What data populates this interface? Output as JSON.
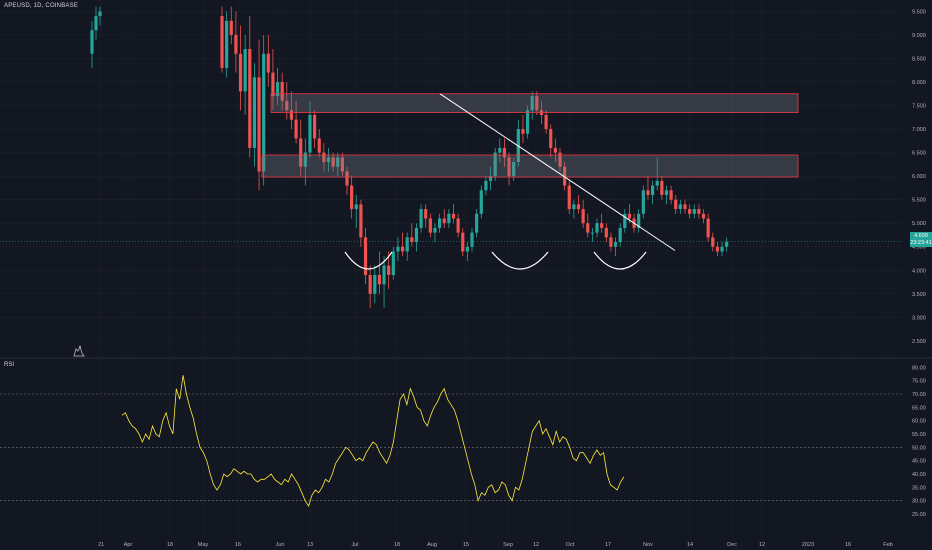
{
  "header": {
    "symbol_line": "APEUSD, 1D, COINBASE"
  },
  "rsi_panel": {
    "title": "RSI"
  },
  "price_tag": {
    "value": "4.609",
    "countdown": "23:23:41"
  },
  "colors": {
    "bg": "#131722",
    "up": "#26a69a",
    "down": "#ef5350",
    "rsi": "#ffeb3b",
    "zone_border": "#f23645",
    "trendline": "#ffffff",
    "grid": "#1e222d"
  },
  "icons": {
    "logo": "tradingview-logo-icon"
  },
  "chart_data": [
    {
      "type": "candlestick",
      "title": "APEUSD, 1D, COINBASE",
      "ylim": [
        2.2,
        9.7
      ],
      "y_ticks": [
        "9.500",
        "9.000",
        "8.500",
        "8.000",
        "7.500",
        "7.000",
        "6.500",
        "6.000",
        "5.500",
        "5.000",
        "4.500",
        "4.000",
        "3.500",
        "3.000",
        "2.500"
      ],
      "x_ticks": [
        "21",
        "Apr",
        "18",
        "May",
        "16",
        "Jun",
        "13",
        "Jul",
        "18",
        "Aug",
        "15",
        "Sep",
        "12",
        "Oct",
        "17",
        "Nov",
        "14",
        "Dec",
        "12",
        "2023",
        "16",
        "Feb"
      ],
      "series": [
        {
          "values": [
            [
              8.6,
              9.3,
              8.3,
              9.1
            ],
            [
              9.1,
              9.6,
              8.9,
              9.4
            ],
            [
              9.4,
              9.6,
              9.2,
              9.5
            ],
            [
              9.4,
              9.6,
              8.2,
              8.3
            ],
            [
              8.3,
              9.5,
              8.1,
              9.3
            ],
            [
              9.3,
              9.6,
              8.8,
              9.0
            ],
            [
              9.0,
              9.5,
              8.2,
              8.6
            ],
            [
              8.6,
              9.2,
              7.4,
              7.8
            ],
            [
              7.8,
              9.0,
              7.3,
              8.7
            ],
            [
              8.7,
              9.4,
              6.4,
              6.6
            ],
            [
              6.6,
              8.4,
              6.2,
              8.1
            ],
            [
              8.1,
              8.9,
              5.7,
              6.1
            ],
            [
              6.1,
              9.0,
              5.8,
              8.6
            ],
            [
              8.6,
              9.0,
              7.9,
              8.2
            ],
            [
              8.2,
              8.7,
              7.4,
              7.7
            ],
            [
              7.7,
              8.3,
              7.5,
              8.0
            ],
            [
              8.0,
              8.2,
              7.4,
              7.6
            ],
            [
              7.6,
              8.0,
              7.2,
              7.4
            ],
            [
              7.4,
              7.8,
              7.0,
              7.2
            ],
            [
              7.2,
              7.6,
              6.7,
              6.8
            ],
            [
              6.8,
              7.2,
              6.0,
              6.2
            ],
            [
              6.2,
              6.8,
              5.8,
              6.5
            ],
            [
              6.5,
              7.6,
              6.4,
              7.3
            ],
            [
              7.3,
              7.4,
              6.6,
              6.8
            ],
            [
              6.8,
              7.0,
              6.4,
              6.5
            ],
            [
              6.5,
              6.7,
              6.1,
              6.3
            ],
            [
              6.3,
              6.6,
              6.1,
              6.4
            ],
            [
              6.4,
              6.5,
              6.1,
              6.2
            ],
            [
              6.2,
              6.5,
              6.0,
              6.4
            ],
            [
              6.4,
              6.5,
              6.0,
              6.1
            ],
            [
              6.1,
              6.2,
              5.6,
              5.8
            ],
            [
              5.8,
              6.0,
              5.1,
              5.3
            ],
            [
              5.3,
              5.6,
              4.9,
              5.4
            ],
            [
              5.4,
              5.5,
              4.5,
              4.7
            ],
            [
              4.7,
              4.9,
              3.7,
              3.9
            ],
            [
              3.9,
              4.1,
              3.2,
              3.5
            ],
            [
              3.5,
              4.1,
              3.3,
              3.9
            ],
            [
              3.9,
              4.4,
              3.5,
              3.7
            ],
            [
              3.7,
              4.3,
              3.2,
              4.1
            ],
            [
              4.1,
              4.4,
              3.6,
              3.9
            ],
            [
              3.9,
              4.5,
              3.8,
              4.4
            ],
            [
              4.4,
              4.7,
              4.2,
              4.5
            ],
            [
              4.5,
              4.8,
              4.3,
              4.4
            ],
            [
              4.4,
              4.8,
              4.2,
              4.7
            ],
            [
              4.7,
              5.0,
              4.5,
              4.6
            ],
            [
              4.6,
              5.0,
              4.4,
              4.9
            ],
            [
              4.9,
              5.4,
              4.8,
              5.3
            ],
            [
              5.3,
              5.4,
              4.9,
              5.1
            ],
            [
              5.1,
              5.2,
              4.7,
              4.8
            ],
            [
              4.8,
              5.0,
              4.6,
              4.9
            ],
            [
              4.9,
              5.2,
              4.8,
              5.1
            ],
            [
              5.1,
              5.3,
              4.9,
              5.0
            ],
            [
              5.0,
              5.3,
              4.9,
              5.2
            ],
            [
              5.2,
              5.4,
              5.0,
              5.1
            ],
            [
              5.1,
              5.2,
              4.7,
              4.8
            ],
            [
              4.8,
              4.9,
              4.3,
              4.4
            ],
            [
              4.4,
              4.6,
              4.2,
              4.5
            ],
            [
              4.5,
              4.9,
              4.4,
              4.8
            ],
            [
              4.8,
              5.3,
              4.7,
              5.2
            ],
            [
              5.2,
              5.8,
              5.1,
              5.7
            ],
            [
              5.7,
              6.0,
              5.6,
              5.9
            ],
            [
              5.9,
              6.2,
              5.7,
              6.0
            ],
            [
              6.0,
              6.6,
              5.9,
              6.5
            ],
            [
              6.5,
              6.8,
              6.3,
              6.6
            ],
            [
              6.6,
              6.8,
              6.2,
              6.4
            ],
            [
              6.4,
              6.5,
              5.8,
              6.0
            ],
            [
              6.0,
              6.4,
              5.9,
              6.3
            ],
            [
              6.3,
              7.2,
              6.2,
              7.0
            ],
            [
              7.0,
              7.3,
              6.7,
              6.9
            ],
            [
              6.9,
              7.5,
              6.8,
              7.4
            ],
            [
              7.4,
              7.8,
              7.2,
              7.7
            ],
            [
              7.7,
              7.8,
              7.3,
              7.4
            ],
            [
              7.4,
              7.6,
              7.1,
              7.3
            ],
            [
              7.3,
              7.4,
              6.9,
              7.0
            ],
            [
              7.0,
              7.1,
              6.4,
              6.6
            ],
            [
              6.6,
              6.8,
              6.3,
              6.5
            ],
            [
              6.5,
              6.6,
              6.1,
              6.2
            ],
            [
              6.2,
              6.3,
              5.7,
              5.8
            ],
            [
              5.8,
              5.9,
              5.2,
              5.3
            ],
            [
              5.3,
              5.5,
              5.1,
              5.4
            ],
            [
              5.4,
              5.6,
              5.2,
              5.3
            ],
            [
              5.3,
              5.5,
              4.9,
              5.0
            ],
            [
              5.0,
              5.2,
              4.7,
              4.8
            ],
            [
              4.8,
              4.9,
              4.6,
              4.8
            ],
            [
              4.8,
              5.1,
              4.7,
              5.0
            ],
            [
              5.0,
              5.2,
              4.8,
              4.9
            ],
            [
              4.9,
              5.0,
              4.6,
              4.7
            ],
            [
              4.7,
              4.8,
              4.4,
              4.5
            ],
            [
              4.5,
              4.7,
              4.3,
              4.6
            ],
            [
              4.6,
              5.0,
              4.5,
              4.9
            ],
            [
              4.9,
              5.3,
              4.8,
              5.2
            ],
            [
              5.2,
              5.4,
              5.0,
              5.1
            ],
            [
              5.1,
              5.2,
              4.8,
              4.9
            ],
            [
              4.9,
              5.3,
              4.8,
              5.2
            ],
            [
              5.2,
              5.8,
              5.1,
              5.7
            ],
            [
              5.7,
              6.0,
              5.5,
              5.6
            ],
            [
              5.6,
              5.9,
              5.4,
              5.8
            ],
            [
              5.8,
              6.4,
              5.7,
              5.9
            ],
            [
              5.9,
              6.0,
              5.5,
              5.6
            ],
            [
              5.6,
              5.8,
              5.4,
              5.7
            ],
            [
              5.7,
              5.8,
              5.4,
              5.5
            ],
            [
              5.5,
              5.6,
              5.2,
              5.3
            ],
            [
              5.3,
              5.5,
              5.2,
              5.4
            ],
            [
              5.4,
              5.5,
              5.2,
              5.3
            ],
            [
              5.3,
              5.4,
              5.1,
              5.2
            ],
            [
              5.2,
              5.4,
              5.1,
              5.3
            ],
            [
              5.3,
              5.4,
              5.1,
              5.2
            ],
            [
              5.2,
              5.3,
              5.0,
              5.1
            ],
            [
              5.1,
              5.2,
              4.6,
              4.7
            ],
            [
              4.7,
              4.8,
              4.4,
              4.5
            ],
            [
              4.5,
              4.6,
              4.3,
              4.4
            ],
            [
              4.4,
              4.6,
              4.3,
              4.5
            ],
            [
              4.5,
              4.7,
              4.4,
              4.61
            ]
          ]
        }
      ],
      "zones": [
        {
          "from": 7.35,
          "to": 7.75
        },
        {
          "from": 5.98,
          "to": 6.45
        }
      ],
      "trendline": [
        [
          7.75
        ],
        [
          4.42
        ]
      ]
    },
    {
      "type": "line",
      "title": "RSI",
      "ylim": [
        22,
        82
      ],
      "y_ticks": [
        "80.00",
        "75.00",
        "70.00",
        "65.00",
        "60.00",
        "55.00",
        "50.00",
        "45.00",
        "40.00",
        "35.00",
        "30.00",
        "25.00"
      ],
      "levels": [
        70,
        50,
        30
      ],
      "series": [
        {
          "values": [
            62,
            63,
            60,
            58,
            57,
            55,
            52,
            55,
            53,
            58,
            55,
            54,
            60,
            63,
            58,
            55,
            72,
            68,
            77,
            70,
            65,
            61,
            55,
            50,
            48,
            45,
            40,
            36,
            34,
            36,
            40,
            39,
            40,
            42,
            41,
            40,
            41,
            40,
            40,
            38,
            37,
            38,
            38,
            39,
            40,
            38,
            37,
            36,
            38,
            37,
            40,
            38,
            36,
            33,
            30,
            28,
            32,
            34,
            33,
            35,
            38,
            37,
            40,
            44,
            46,
            48,
            50,
            49,
            47,
            45,
            46,
            45,
            48,
            50,
            52,
            51,
            48,
            46,
            44,
            47,
            52,
            60,
            68,
            70,
            66,
            72,
            69,
            65,
            64,
            60,
            58,
            62,
            65,
            67,
            70,
            72,
            68,
            66,
            64,
            60,
            55,
            50,
            45,
            40,
            36,
            30,
            33,
            32,
            35,
            36,
            33,
            34,
            37,
            36,
            32,
            30,
            35,
            34,
            38,
            44,
            50,
            56,
            58,
            60,
            55,
            57,
            54,
            51,
            56,
            52,
            54,
            53,
            50,
            46,
            45,
            48,
            48,
            46,
            44,
            47,
            49,
            47,
            48,
            40,
            36,
            35,
            34,
            37,
            39
          ]
        }
      ]
    }
  ]
}
